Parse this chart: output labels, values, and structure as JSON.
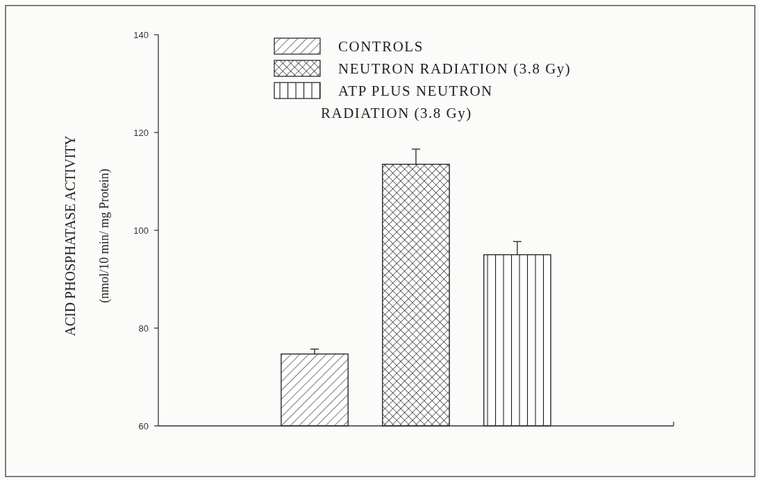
{
  "chart_data": {
    "type": "bar",
    "ylabel": "ACID PHOSPHATASE ACTIVITY\n(nmol/10 min/ mg Protein)",
    "categories": [
      null
    ],
    "ylim": [
      60,
      140
    ],
    "yticks": [
      60,
      80,
      100,
      120,
      140
    ],
    "legend": "top",
    "grid": false,
    "series": [
      {
        "name": "CONTROLS",
        "color": "#1a1a1a",
        "values": [
          74.7
        ],
        "errors": [
          [
            74.7,
            75.7
          ]
        ]
      },
      {
        "name": "NEUTRON RADIATION (3.8 Gy)",
        "color": "#1a1a1a",
        "values": [
          113.5
        ],
        "errors": [
          [
            113.5,
            116.6
          ]
        ]
      },
      {
        "name": "ATP PLUS NEUTRON\nRADIATION (3.8 Gy)",
        "color": "#1a1a1a",
        "values": [
          95.0
        ],
        "errors": [
          [
            95.0,
            97.7
          ]
        ]
      }
    ]
  }
}
